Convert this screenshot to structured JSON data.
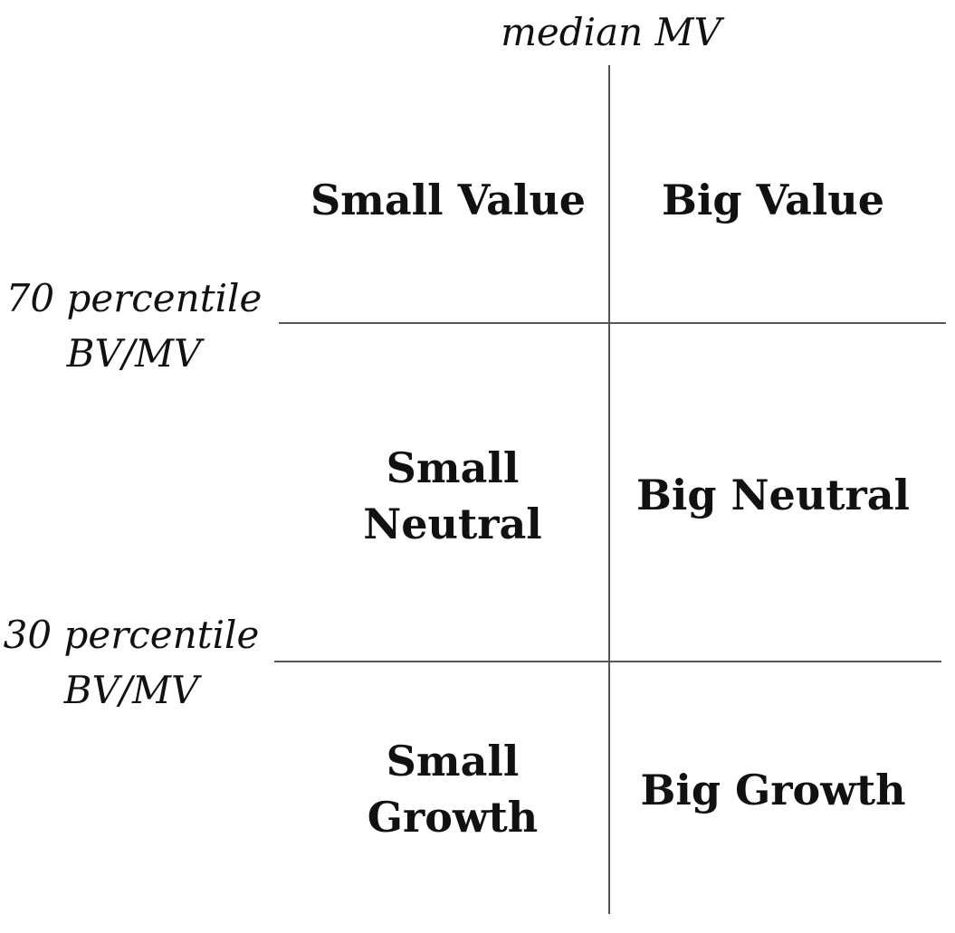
{
  "axis_labels": {
    "market_value_split": "median MV",
    "upper_split_line1": "70 percentile",
    "upper_split_line2": "BV/MV",
    "lower_split_line1": "30 percentile",
    "lower_split_line2": "BV/MV"
  },
  "cells": {
    "small_value": {
      "line1": "Small Value"
    },
    "big_value": {
      "line1": "Big Value"
    },
    "small_neutral": {
      "line1": "Small",
      "line2": "Neutral"
    },
    "big_neutral": {
      "line1": "Big Neutral"
    },
    "small_growth": {
      "line1": "Small",
      "line2": "Growth"
    },
    "big_growth": {
      "line1": "Big Growth"
    }
  },
  "colors": {
    "line": "#555555",
    "text": "#111111",
    "background": "#ffffff"
  }
}
